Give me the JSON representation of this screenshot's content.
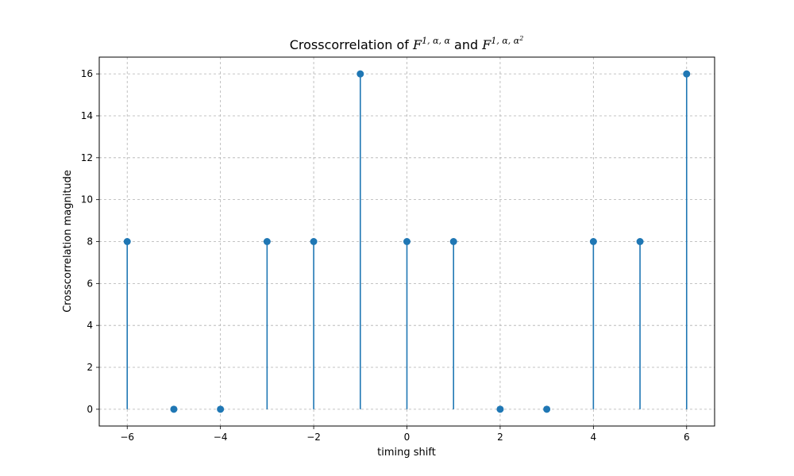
{
  "chart_data": {
    "type": "stem",
    "title": {
      "prefix": "Crosscorrelation of ",
      "term1_base": "F",
      "term1_sup": "1, α, α",
      "joiner": " and ",
      "term2_base": "F",
      "term2_sup": "1, α, α",
      "term2_sup_exp": "2"
    },
    "xlabel": "timing shift",
    "ylabel": "Crosscorrelation magnitude",
    "x": [
      -6,
      -5,
      -4,
      -3,
      -2,
      -1,
      0,
      1,
      2,
      3,
      4,
      5,
      6
    ],
    "y": [
      8,
      0,
      0,
      8,
      8,
      16,
      8,
      8,
      0,
      0,
      8,
      8,
      16
    ],
    "xlim": [
      -6.6,
      6.6
    ],
    "ylim": [
      -0.8,
      16.8
    ],
    "xticks": [
      -6,
      -4,
      -2,
      0,
      2,
      4,
      6
    ],
    "xtick_labels": [
      "−6",
      "−4",
      "−2",
      "0",
      "2",
      "4",
      "6"
    ],
    "yticks": [
      0,
      2,
      4,
      6,
      8,
      10,
      12,
      14,
      16
    ],
    "ytick_labels": [
      "0",
      "2",
      "4",
      "6",
      "8",
      "10",
      "12",
      "14",
      "16"
    ],
    "grid": true,
    "color": "#1f77b4"
  }
}
